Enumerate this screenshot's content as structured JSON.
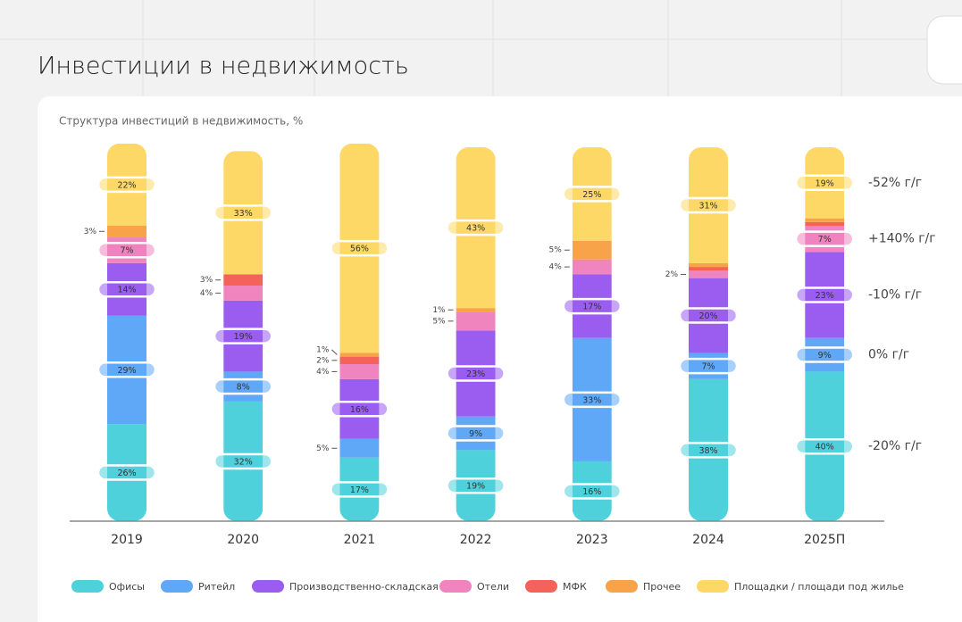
{
  "chart_data": {
    "type": "stacked-bar",
    "title": "Инвестиции в недвижимость",
    "subtitle": "Структура инвестиций в недвижимость, %",
    "categories": [
      "2019",
      "2020",
      "2021",
      "2022",
      "2023",
      "2024",
      "2025П"
    ],
    "ylim": [
      0,
      100
    ],
    "series": [
      {
        "name": "Офисы",
        "color": "#4fd1dc",
        "values": [
          26,
          32,
          17,
          19,
          16,
          38,
          40
        ],
        "value_labels": [
          "26%",
          "32%",
          "17%",
          "19%",
          "16%",
          "38%",
          "40%"
        ],
        "yoy": "-20% г/г"
      },
      {
        "name": "Ритейл",
        "color": "#5ea8f7",
        "values": [
          29,
          8,
          5,
          9,
          33,
          7,
          9
        ],
        "value_labels": [
          "29%",
          "8%",
          "5%",
          "9%",
          "33%",
          "7%",
          "9%"
        ],
        "yoy": "0% г/г"
      },
      {
        "name": "Производственно-складская",
        "color": "#9b5cf0",
        "values": [
          14,
          19,
          16,
          23,
          17,
          20,
          23
        ],
        "value_labels": [
          "14%",
          "19%",
          "16%",
          "23%",
          "17%",
          "20%",
          "23%"
        ],
        "yoy": "-10% г/г"
      },
      {
        "name": "Отели",
        "color": "#f084bf",
        "values": [
          7,
          4,
          4,
          5,
          4,
          2,
          7
        ],
        "value_labels": [
          "7%",
          "4%",
          "4%",
          "5%",
          "4%",
          "2%",
          "7%"
        ],
        "yoy": "+140% г/г"
      },
      {
        "name": "МФК",
        "color": "#f5625a",
        "values": [
          0,
          3,
          2,
          0,
          0,
          1,
          1
        ],
        "value_labels": [
          null,
          "3%",
          "2%",
          null,
          null,
          null,
          null
        ]
      },
      {
        "name": "Прочее",
        "color": "#f8a24a",
        "values": [
          3,
          0,
          1,
          1,
          5,
          1,
          1
        ],
        "value_labels": [
          "3%",
          null,
          "1%",
          "1%",
          "5%",
          null,
          null
        ]
      },
      {
        "name": "Площадки / площади под жилье",
        "color": "#fdd866",
        "values": [
          22,
          33,
          56,
          43,
          25,
          31,
          19
        ],
        "value_labels": [
          "22%",
          "33%",
          "56%",
          "43%",
          "25%",
          "31%",
          "19%"
        ],
        "yoy": "-52% г/г"
      }
    ]
  }
}
